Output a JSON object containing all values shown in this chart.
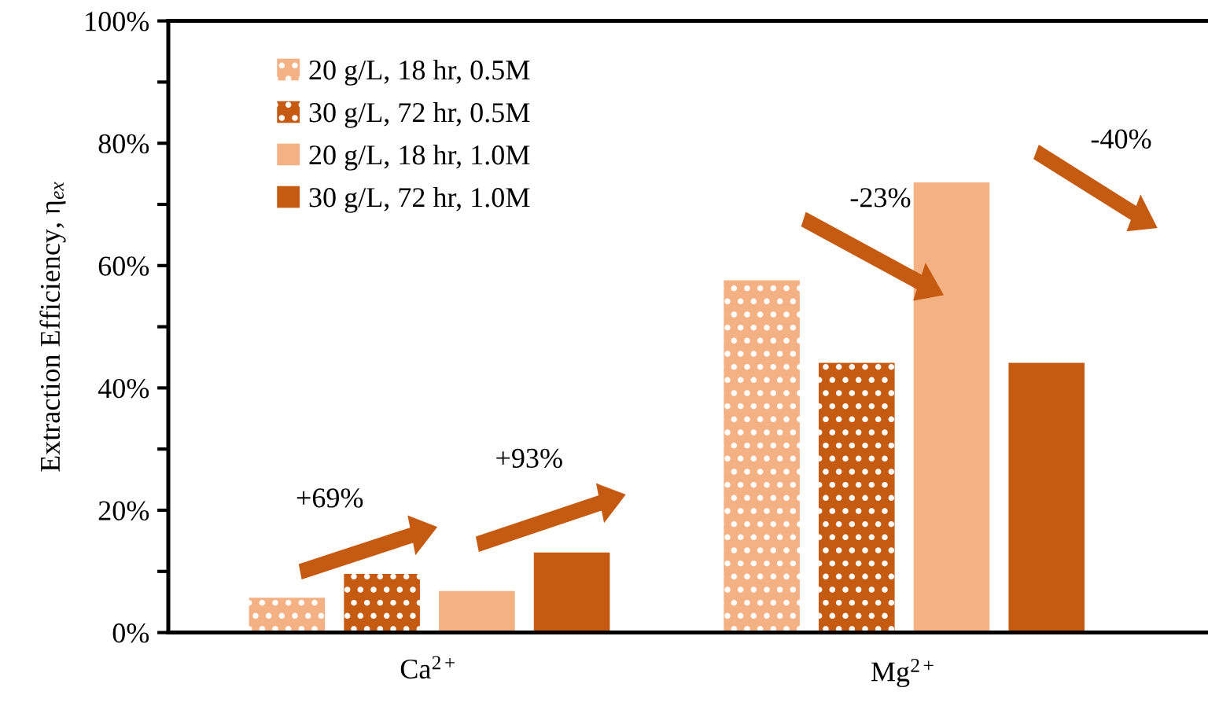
{
  "chart_data": {
    "type": "bar",
    "categories": [
      "Ca$^{2+}$",
      "Mg$^{2+}$"
    ],
    "ylabel": "Extraction Efficiency, η$_{ex}$",
    "series": [
      {
        "name": "20 g/L, 18 hr, 0.5M",
        "color": "#f4b183",
        "values": [
          5.7,
          57.6
        ]
      },
      {
        "name": "30 g/L, 72 hr, 0.5M",
        "color": "#c55a11",
        "values": [
          9.6,
          44.1
        ]
      },
      {
        "name": "20 g/L, 18 hr, 1.0M",
        "color": "#f4b183",
        "values": [
          6.8,
          73.6
        ]
      },
      {
        "name": "30 g/L, 72 hr, 1.0M",
        "color": "#c55a11",
        "values": [
          13.1,
          44.1
        ]
      }
    ],
    "ylim": [
      0,
      100
    ],
    "yticks": [
      {
        "value": 0,
        "label": "0%"
      },
      {
        "value": 10,
        "label": null
      },
      {
        "value": 20,
        "label": "20%"
      },
      {
        "value": 30,
        "label": null
      },
      {
        "value": 40,
        "label": "40%"
      },
      {
        "value": 50,
        "label": null
      },
      {
        "value": 60,
        "label": "60%"
      },
      {
        "value": 70,
        "label": null
      },
      {
        "value": 80,
        "label": "80%"
      },
      {
        "value": 90,
        "label": null
      },
      {
        "value": 100,
        "label": "100%"
      }
    ],
    "annotations": [
      "+69%",
      "+93%",
      "-23%",
      "-40%"
    ],
    "legend": "top left",
    "grid": false
  }
}
